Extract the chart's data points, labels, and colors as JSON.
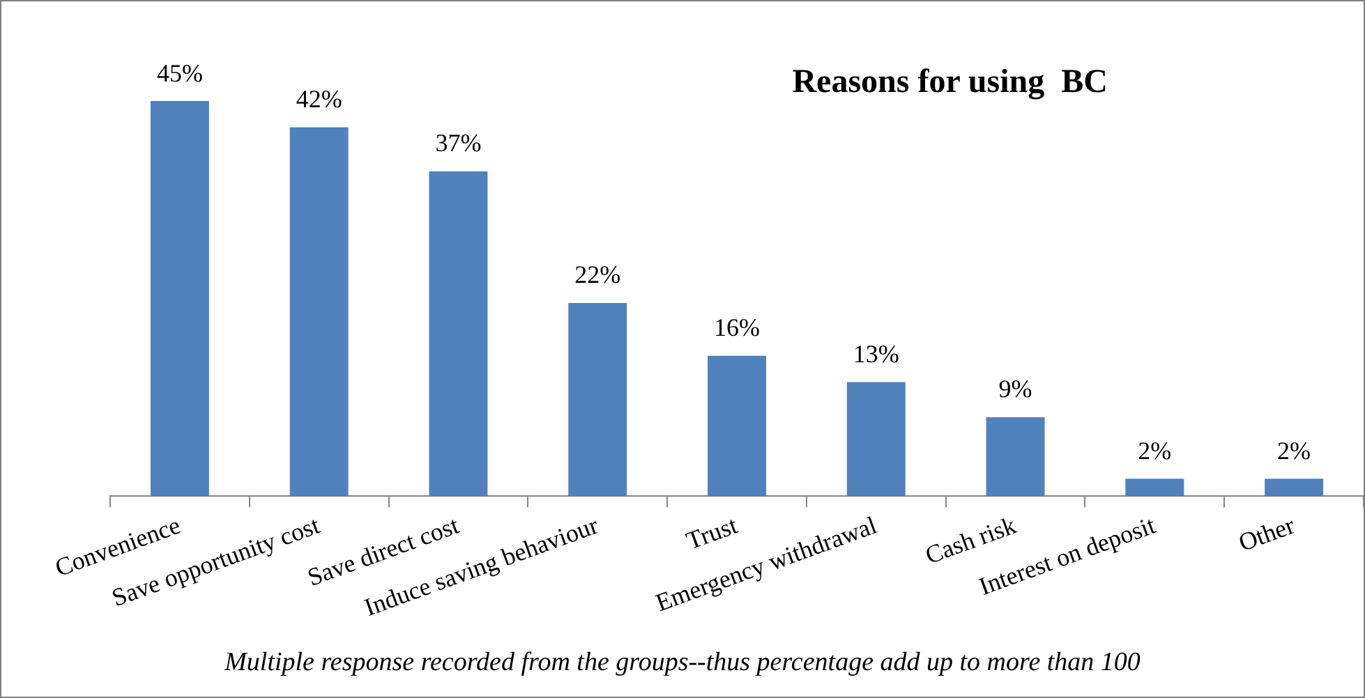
{
  "chart_data": {
    "type": "bar",
    "title": "Reasons for using  BC",
    "categories": [
      "Convenience",
      "Save opportunity cost",
      "Save direct cost",
      "Induce saving behaviour",
      "Trust",
      "Emergency withdrawal",
      "Cash risk",
      "Interest on deposit",
      "Other"
    ],
    "values": [
      45,
      42,
      37,
      22,
      16,
      13,
      9,
      2,
      2
    ],
    "value_labels": [
      "45%",
      "42%",
      "37%",
      "22%",
      "16%",
      "13%",
      "9%",
      "2%",
      "2%"
    ],
    "color": "#4f81bd",
    "annotations": [
      "Multiple response recorded from the groups--thus percentage add up to more than 100"
    ]
  }
}
